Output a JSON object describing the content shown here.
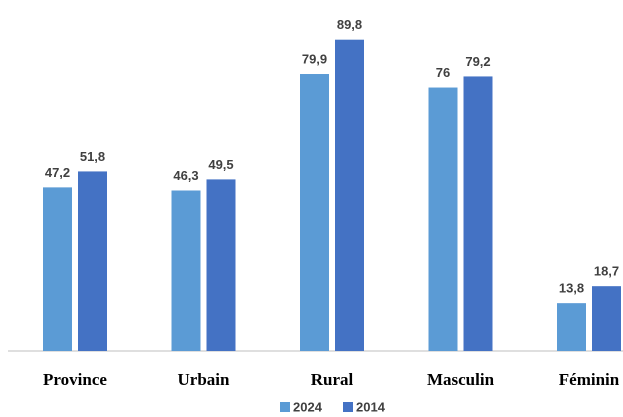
{
  "chart_data": {
    "type": "bar",
    "categories": [
      "Province",
      "Urbain",
      "Rural",
      "Masculin",
      "Féminin"
    ],
    "series": [
      {
        "name": "2024",
        "color": "#5b9bd5",
        "values": [
          47.2,
          46.3,
          79.9,
          76,
          13.8
        ],
        "value_labels": [
          "47,2",
          "46,3",
          "79,9",
          "76",
          "13,8"
        ]
      },
      {
        "name": "2014",
        "color": "#4472c4",
        "values": [
          51.8,
          49.5,
          89.8,
          79.2,
          18.7
        ],
        "value_labels": [
          "51,8",
          "49,5",
          "89,8",
          "79,2",
          "18,7"
        ]
      }
    ],
    "ylim": [
      0,
      90
    ],
    "legend": "bottom"
  }
}
